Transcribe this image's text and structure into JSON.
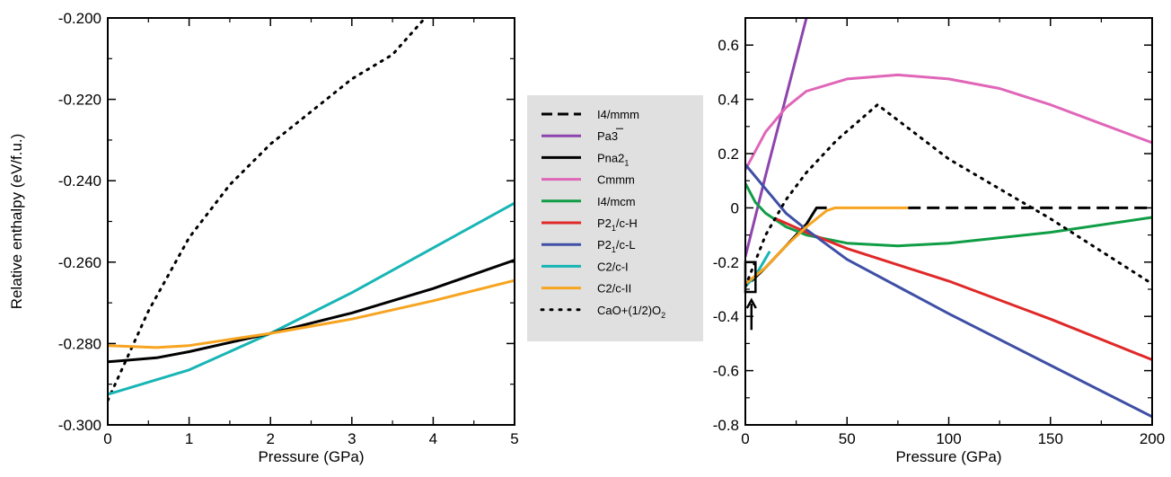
{
  "chart_data": [
    {
      "type": "line",
      "xlabel": "Pressure (GPa)",
      "ylabel": "Relative enthalpy (eV/f.u.)",
      "xlim": [
        0,
        5
      ],
      "ylim": [
        -0.3,
        -0.2
      ],
      "xticks": [
        "0",
        "1",
        "2",
        "3",
        "4",
        "5"
      ],
      "yticks": [
        "-0.300",
        "-0.280",
        "-0.260",
        "-0.240",
        "-0.220",
        "-0.200"
      ],
      "series": [
        {
          "name": "CaO+(1/2)O2",
          "color": "#000000",
          "dash": "dot",
          "points": [
            [
              0,
              -0.294
            ],
            [
              0.5,
              -0.272
            ],
            [
              1.0,
              -0.254
            ],
            [
              1.5,
              -0.241
            ],
            [
              2.0,
              -0.231
            ],
            [
              2.5,
              -0.223
            ],
            [
              3.0,
              -0.215
            ],
            [
              3.5,
              -0.209
            ],
            [
              3.9,
              -0.2
            ]
          ]
        },
        {
          "name": "C2/c-I",
          "color": "#18b5b5",
          "dash": "solid",
          "points": [
            [
              0,
              -0.2925
            ],
            [
              1,
              -0.2865
            ],
            [
              2,
              -0.2775
            ],
            [
              3,
              -0.2675
            ],
            [
              4,
              -0.2565
            ],
            [
              5,
              -0.2455
            ]
          ]
        },
        {
          "name": "Pna21",
          "color": "#000000",
          "dash": "solid",
          "points": [
            [
              0,
              -0.2845
            ],
            [
              0.6,
              -0.2835
            ],
            [
              1,
              -0.282
            ],
            [
              2,
              -0.2775
            ],
            [
              3,
              -0.2725
            ],
            [
              4,
              -0.2665
            ],
            [
              5,
              -0.2595
            ]
          ]
        },
        {
          "name": "C2/c-II",
          "color": "#f7a420",
          "dash": "solid",
          "points": [
            [
              0,
              -0.2805
            ],
            [
              0.6,
              -0.281
            ],
            [
              1,
              -0.2805
            ],
            [
              2,
              -0.2775
            ],
            [
              3,
              -0.274
            ],
            [
              4,
              -0.2695
            ],
            [
              5,
              -0.2645
            ]
          ]
        }
      ]
    },
    {
      "type": "line",
      "xlabel": "Pressure (GPa)",
      "ylabel": "",
      "xlim": [
        0,
        200
      ],
      "ylim": [
        -0.8,
        0.7
      ],
      "xticks": [
        "0",
        "50",
        "100",
        "150",
        "200"
      ],
      "yticks": [
        "-0.8",
        "-0.6",
        "-0.4",
        "-0.2",
        "0",
        "0.2",
        "0.4",
        "0.6"
      ],
      "series": [
        {
          "name": "I4/mmm",
          "color": "#000000",
          "dash": "dash",
          "points": [
            [
              80,
              0
            ],
            [
              200,
              0
            ]
          ]
        },
        {
          "name": "Pa3",
          "color": "#8e44ad",
          "dash": "solid",
          "points": [
            [
              0,
              -0.18
            ],
            [
              10,
              0.12
            ],
            [
              20,
              0.41
            ],
            [
              30,
              0.7
            ]
          ]
        },
        {
          "name": "Pna21",
          "color": "#000000",
          "dash": "solid",
          "points": [
            [
              3,
              -0.27
            ],
            [
              10,
              -0.22
            ],
            [
              20,
              -0.14
            ],
            [
              30,
              -0.06
            ],
            [
              35,
              0
            ],
            [
              40,
              0
            ]
          ]
        },
        {
          "name": "Cmmm",
          "color": "#e066b8",
          "dash": "solid",
          "points": [
            [
              0,
              0.14
            ],
            [
              10,
              0.28
            ],
            [
              20,
              0.37
            ],
            [
              30,
              0.43
            ],
            [
              50,
              0.475
            ],
            [
              75,
              0.49
            ],
            [
              100,
              0.475
            ],
            [
              125,
              0.44
            ],
            [
              150,
              0.38
            ],
            [
              175,
              0.31
            ],
            [
              200,
              0.24
            ]
          ]
        },
        {
          "name": "I4/mcm",
          "color": "#0f9d45",
          "dash": "solid",
          "points": [
            [
              0,
              0.09
            ],
            [
              5,
              0.02
            ],
            [
              10,
              -0.02
            ],
            [
              20,
              -0.07
            ],
            [
              30,
              -0.1
            ],
            [
              50,
              -0.13
            ],
            [
              75,
              -0.14
            ],
            [
              100,
              -0.13
            ],
            [
              150,
              -0.09
            ],
            [
              200,
              -0.035
            ]
          ]
        },
        {
          "name": "P21/c-H",
          "color": "#e02828",
          "dash": "solid",
          "points": [
            [
              15,
              -0.04
            ],
            [
              30,
              -0.09
            ],
            [
              50,
              -0.15
            ],
            [
              100,
              -0.27
            ],
            [
              150,
              -0.41
            ],
            [
              200,
              -0.56
            ]
          ]
        },
        {
          "name": "P21/c-L",
          "color": "#3e4fa5",
          "dash": "solid",
          "points": [
            [
              0,
              0.16
            ],
            [
              10,
              0.07
            ],
            [
              20,
              -0.02
            ],
            [
              30,
              -0.08
            ],
            [
              50,
              -0.19
            ],
            [
              100,
              -0.39
            ],
            [
              150,
              -0.58
            ],
            [
              200,
              -0.77
            ]
          ]
        },
        {
          "name": "C2/c-I",
          "color": "#18b5b5",
          "dash": "solid",
          "points": [
            [
              0,
              -0.29
            ],
            [
              5,
              -0.25
            ],
            [
              12,
              -0.16
            ]
          ]
        },
        {
          "name": "C2/c-II",
          "color": "#f7a420",
          "dash": "solid",
          "points": [
            [
              0,
              -0.28
            ],
            [
              10,
              -0.22
            ],
            [
              20,
              -0.14
            ],
            [
              30,
              -0.07
            ],
            [
              40,
              -0.01
            ],
            [
              44,
              0
            ],
            [
              80,
              0
            ]
          ]
        },
        {
          "name": "CaO+(1/2)O2",
          "color": "#000000",
          "dash": "dot",
          "points": [
            [
              0,
              -0.29
            ],
            [
              10,
              -0.1
            ],
            [
              20,
              0.03
            ],
            [
              30,
              0.13
            ],
            [
              45,
              0.25
            ],
            [
              65,
              0.38
            ],
            [
              100,
              0.18
            ],
            [
              150,
              -0.04
            ],
            [
              200,
              -0.28
            ]
          ]
        }
      ],
      "annotations": [
        {
          "type": "rectangle",
          "x": [
            0,
            5
          ],
          "y": [
            -0.31,
            -0.2
          ]
        },
        {
          "type": "arrow",
          "x": 3,
          "y_from": -0.45,
          "y_to": -0.34
        }
      ]
    }
  ],
  "legend": {
    "placement": "between-panels",
    "entries": [
      {
        "label": "I4/mmm",
        "color": "#000000",
        "dash": "dash"
      },
      {
        "label": "Pa3",
        "color": "#8e44ad",
        "dash": "solid",
        "overline": true
      },
      {
        "label": "Pna2",
        "sub": "1",
        "color": "#000000",
        "dash": "solid"
      },
      {
        "label": "Cmmm",
        "color": "#e066b8",
        "dash": "solid"
      },
      {
        "label": "I4/mcm",
        "color": "#0f9d45",
        "dash": "solid"
      },
      {
        "label": "P2",
        "sub": "1",
        "tail": "/c-H",
        "color": "#e02828",
        "dash": "solid"
      },
      {
        "label": "P2",
        "sub": "1",
        "tail": "/c-L",
        "color": "#3e4fa5",
        "dash": "solid"
      },
      {
        "label": "C2/c-I",
        "color": "#18b5b5",
        "dash": "solid"
      },
      {
        "label": "C2/c-II",
        "color": "#f7a420",
        "dash": "solid"
      },
      {
        "label": "CaO+(1/2)O",
        "sub": "2",
        "color": "#000000",
        "dash": "dot"
      }
    ]
  }
}
